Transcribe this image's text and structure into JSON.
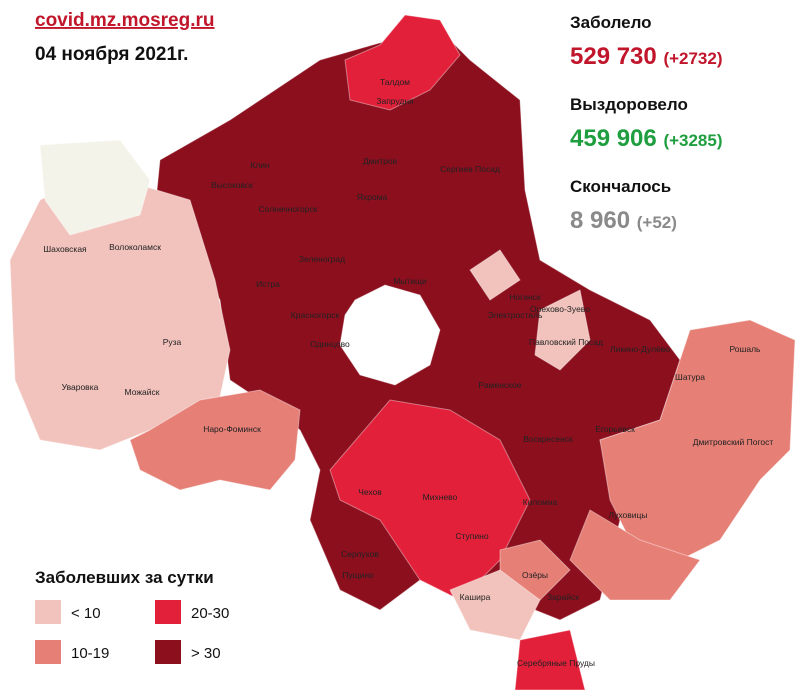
{
  "header": {
    "source": "covid.mz.mosreg.ru",
    "date": "04 ноября 2021г."
  },
  "stats": [
    {
      "label": "Заболело",
      "value": "529 730",
      "delta": "(+2732)"
    },
    {
      "label": "Выздоровело",
      "value": "459 906",
      "delta": "(+3285)"
    },
    {
      "label": "Скончалось",
      "value": "8 960",
      "delta": "(+52)"
    }
  ],
  "legend": {
    "title": "Заболевших за сутки",
    "items": [
      {
        "label": "< 10",
        "color": "#f2c3bd"
      },
      {
        "label": "10-19",
        "color": "#e67f76"
      },
      {
        "label": "20-30",
        "color": "#e3203a"
      },
      {
        "label": "> 30",
        "color": "#8c0f1e"
      }
    ]
  },
  "places": [
    "Талдом",
    "Запрудня",
    "Клин",
    "Высоковск",
    "Дмитров",
    "Сергиев Посад",
    "Солнечногорск",
    "Яхрома",
    "Шаховская",
    "Волоколамск",
    "Зеленоград",
    "Мытищи",
    "Истра",
    "Красногорск",
    "Ногинск",
    "Электросталь",
    "Одинцово",
    "Руза",
    "Орехово-Зуево",
    "Павловский Посад",
    "Ликино-Дулёво",
    "Рошаль",
    "Шатура",
    "Уваровка",
    "Можайск",
    "Раменское",
    "Наро-Фоминск",
    "Егорьевск",
    "Воскресенск",
    "Дмитровский Погост",
    "Чехов",
    "Михнево",
    "Коломна",
    "Серпухов",
    "Пущино",
    "Ступино",
    "Луховицы",
    "Озёры",
    "Кашира",
    "Зарайск",
    "Серебряные Пруды"
  ]
}
